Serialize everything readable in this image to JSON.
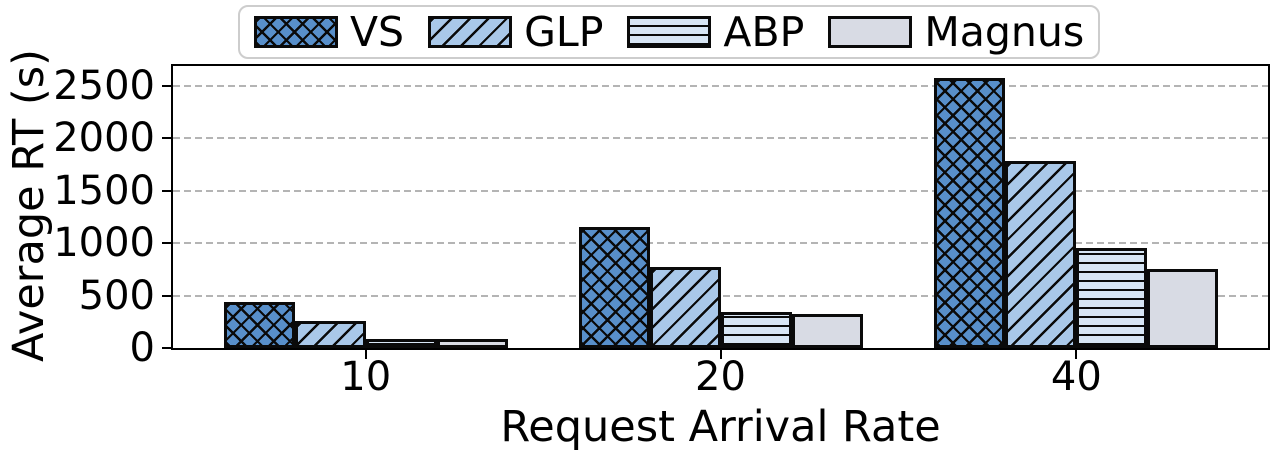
{
  "figure": {
    "background": "#ffffff"
  },
  "chart_data": {
    "type": "bar",
    "title": "",
    "xlabel": "Request Arrival Rate",
    "ylabel": "Average RT (s)",
    "categories": [
      "10",
      "20",
      "40"
    ],
    "series": [
      {
        "name": "VS",
        "color": "#588fca",
        "hatch": "xx",
        "values": [
          435,
          1150,
          2580
        ]
      },
      {
        "name": "GLP",
        "color": "#a9c8e9",
        "hatch": "//",
        "values": [
          255,
          775,
          1780
        ]
      },
      {
        "name": "ABP",
        "color": "#d7e5f4",
        "hatch": "--",
        "values": [
          90,
          340,
          955
        ]
      },
      {
        "name": "Magnus",
        "color": "#d8dbe4",
        "hatch": "",
        "values": [
          85,
          325,
          750
        ]
      }
    ],
    "ylim": [
      0,
      2690
    ],
    "yticks": [
      0,
      500,
      1000,
      1500,
      2000,
      2500
    ],
    "grid": "horizontal dashed",
    "gridline_color": "#b4b4b4",
    "axis_color": "#000000",
    "hatch_edge_color": "#000000",
    "legend_position": "top-center"
  }
}
